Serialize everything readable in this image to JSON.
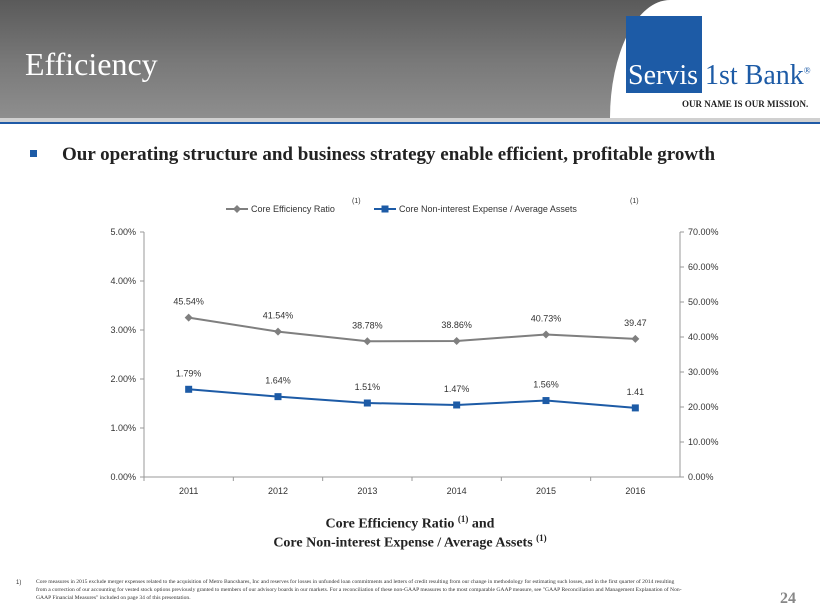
{
  "header": {
    "title": "Efficiency"
  },
  "logo": {
    "part1": "Servis",
    "part2": "1st Bank",
    "mark": "®",
    "tagline": "OUR NAME IS OUR MISSION."
  },
  "headline": "Our operating structure and business strategy enable efficient, profitable growth",
  "colors": {
    "efficiency": "#7f7f7f",
    "expense": "#1d5ba6",
    "brand": "#1d5ba6"
  },
  "chart_data": {
    "type": "line",
    "categories": [
      "2011",
      "2012",
      "2013",
      "2014",
      "2015",
      "2016"
    ],
    "series": [
      {
        "name": "Core Efficiency Ratio",
        "footnote": "(1)",
        "axis": "right",
        "values": [
          45.54,
          41.54,
          38.78,
          38.86,
          40.73,
          39.47
        ],
        "labels": [
          "45.54%",
          "41.54%",
          "38.78%",
          "38.86%",
          "40.73%",
          "39.47"
        ]
      },
      {
        "name": "Core Non-interest Expense / Average Assets",
        "footnote": "(1)",
        "axis": "left",
        "values": [
          1.79,
          1.64,
          1.51,
          1.47,
          1.56,
          1.41
        ],
        "labels": [
          "1.79%",
          "1.64%",
          "1.51%",
          "1.47%",
          "1.56%",
          "1.41"
        ]
      }
    ],
    "left_axis": {
      "ylim": [
        0,
        5
      ],
      "ticks": [
        "0.00%",
        "1.00%",
        "2.00%",
        "3.00%",
        "4.00%",
        "5.00%"
      ]
    },
    "right_axis": {
      "ylim": [
        0,
        70
      ],
      "ticks": [
        "0.00%",
        "10.00%",
        "20.00%",
        "30.00%",
        "40.00%",
        "50.00%",
        "60.00%",
        "70.00%"
      ]
    },
    "legend": "top",
    "title_line1": "Core Efficiency  Ratio",
    "title_line2": "Core Non-interest Expense / Average Assets",
    "title_and": "and",
    "title_sup": "(1)"
  },
  "footnote": {
    "num": "1)",
    "text": "Core measures in 2015 exclude merger expenses related to the acquisition of Metro Bancshares, Inc and reserves for losses in unfunded loan commitments and letters of credit resulting from our change in methodology for estimating such losses, and in the first quarter of 2014 resulting from a correction of our accounting for vested stock options previously granted to members of our advisory boards in our markets.  For a reconciliation of these non-GAAP measures to the most comparable GAAP measure, see \"GAAP Reconciliation and Management Explanation of Non-GAAP Financial Measures\" included on page 34 of this presentation."
  },
  "page_number": "24"
}
